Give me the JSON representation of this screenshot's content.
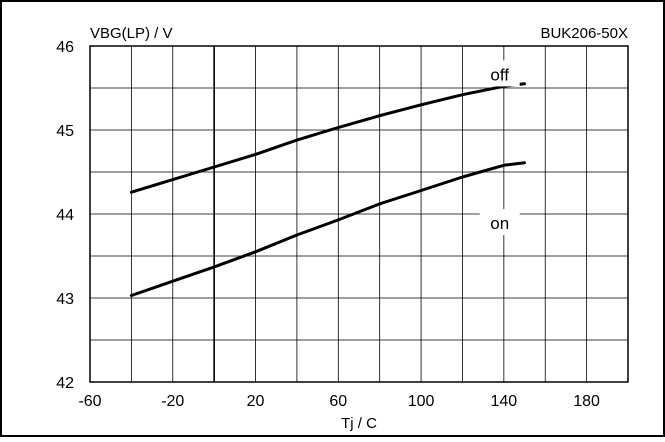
{
  "chart_data": {
    "type": "line",
    "title": "",
    "part_label": "BUK206-50X",
    "ylabel": "VBG(LP) / V",
    "xlabel": "Tj / C",
    "xlim": [
      -60,
      200
    ],
    "ylim": [
      42,
      46
    ],
    "x_ticks": [
      -60,
      -20,
      20,
      60,
      100,
      140,
      180
    ],
    "x_grid_step": 20,
    "y_ticks": [
      42,
      43,
      44,
      45,
      46
    ],
    "y_grid_step": 0.5,
    "grid": true,
    "legend": "none",
    "series": [
      {
        "name": "off",
        "x": [
          -40,
          -20,
          0,
          20,
          40,
          60,
          80,
          100,
          120,
          140,
          150
        ],
        "y": [
          44.26,
          44.41,
          44.56,
          44.71,
          44.88,
          45.03,
          45.17,
          45.3,
          45.42,
          45.52,
          45.55
        ]
      },
      {
        "name": "on",
        "x": [
          -40,
          -20,
          0,
          20,
          40,
          60,
          80,
          100,
          120,
          140,
          150
        ],
        "y": [
          43.03,
          43.2,
          43.37,
          43.55,
          43.75,
          43.93,
          44.12,
          44.28,
          44.44,
          44.58,
          44.61
        ]
      }
    ],
    "series_label_positions": [
      {
        "name": "off",
        "x": 138,
        "y": 45.65
      },
      {
        "name": "on",
        "x": 138,
        "y": 43.88
      }
    ],
    "reference_line_x": 0
  }
}
